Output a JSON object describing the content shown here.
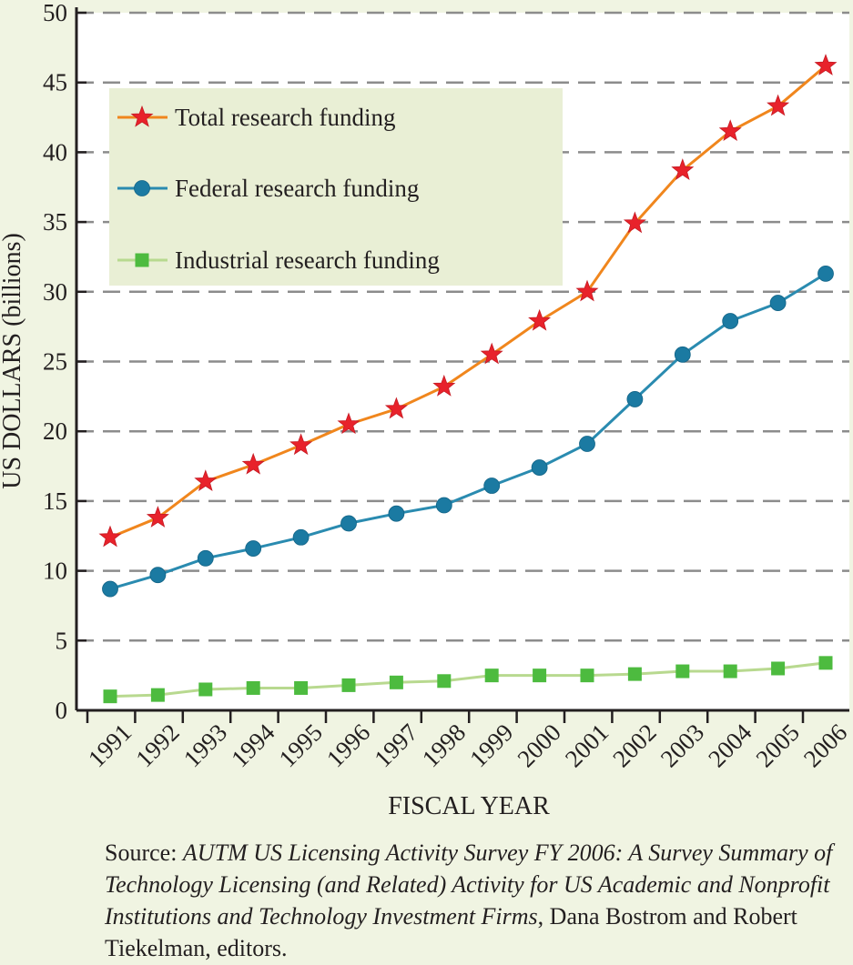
{
  "chart_data": {
    "type": "line",
    "title": "",
    "xlabel": "FISCAL YEAR",
    "ylabel": "US DOLLARS (billions)",
    "ylim": [
      0,
      50
    ],
    "yticks": [
      "0",
      "5",
      "10",
      "15",
      "20",
      "25",
      "30",
      "35",
      "40",
      "45",
      "50"
    ],
    "categories": [
      "1991",
      "1992",
      "1993",
      "1994",
      "1995",
      "1996",
      "1997",
      "1998",
      "1999",
      "2000",
      "2001",
      "2002",
      "2003",
      "2004",
      "2005",
      "2006"
    ],
    "grid": "horizontal dashed",
    "legend_position": "top-left",
    "series": [
      {
        "name": "Total research funding",
        "marker": "star",
        "color": "#f0861d",
        "marker_color": "#e8222b",
        "values": [
          12.4,
          13.8,
          16.4,
          17.6,
          19.0,
          20.5,
          21.6,
          23.2,
          25.5,
          27.9,
          30.0,
          34.9,
          38.7,
          41.5,
          43.3,
          46.2
        ]
      },
      {
        "name": "Federal research funding",
        "marker": "circle",
        "color": "#2a8bb0",
        "marker_color": "#1b7aa2",
        "values": [
          8.7,
          9.7,
          10.9,
          11.6,
          12.4,
          13.4,
          14.1,
          14.7,
          16.1,
          17.4,
          19.1,
          22.3,
          25.5,
          27.9,
          29.2,
          31.3
        ]
      },
      {
        "name": "Industrial research funding",
        "marker": "square",
        "color": "#b8d98f",
        "marker_color": "#4dbb3f",
        "values": [
          1.0,
          1.1,
          1.5,
          1.6,
          1.6,
          1.8,
          2.0,
          2.1,
          2.5,
          2.5,
          2.5,
          2.6,
          2.8,
          2.8,
          3.0,
          3.4
        ]
      }
    ]
  },
  "source": {
    "prefix": "Source: ",
    "title": "AUTM US Licensing Activity Survey FY 2006: A Survey Summary of Technology Licensing (and Related) Activity for US Academic and Nonprofit Institutions and Technology Investment Firms",
    "suffix": ", Dana Bostrom and Robert Tiekelman, editors."
  }
}
